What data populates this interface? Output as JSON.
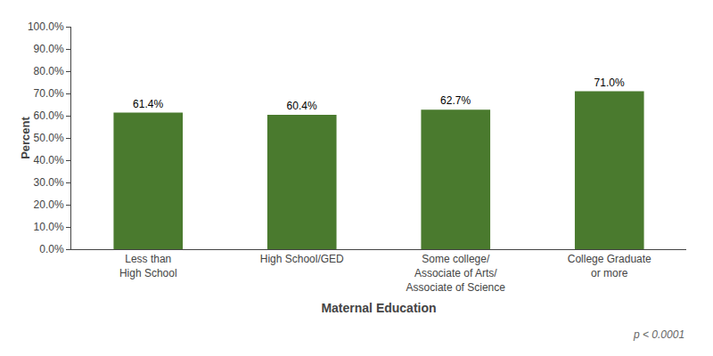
{
  "chart_data": {
    "type": "bar",
    "categories": [
      "Less than\nHigh School",
      "High School/GED",
      "Some college/\nAssociate of Arts/\nAssociate of Science",
      "College Graduate\nor more"
    ],
    "values": [
      61.4,
      60.4,
      62.7,
      71.0
    ],
    "value_labels": [
      "61.4%",
      "60.4%",
      "62.7%",
      "71.0%"
    ],
    "data_labels": true,
    "color": "#4a7a2e",
    "xlabel": "Maternal Education",
    "ylabel": "Percent",
    "annotation": "p < 0.0001",
    "ylim": [
      0,
      100
    ],
    "yticks": [
      {
        "value": 0,
        "label": "0.0%"
      },
      {
        "value": 10,
        "label": "10.0%"
      },
      {
        "value": 20,
        "label": "20.0%"
      },
      {
        "value": 30,
        "label": "30.0%"
      },
      {
        "value": 40,
        "label": "40.0%"
      },
      {
        "value": 50,
        "label": "50.0%"
      },
      {
        "value": 60,
        "label": "60.0%"
      },
      {
        "value": 70,
        "label": "70.0%"
      },
      {
        "value": 80,
        "label": "80.0%"
      },
      {
        "value": 90,
        "label": "90.0%"
      },
      {
        "value": 100,
        "label": "100.0%"
      }
    ],
    "grid": false
  }
}
